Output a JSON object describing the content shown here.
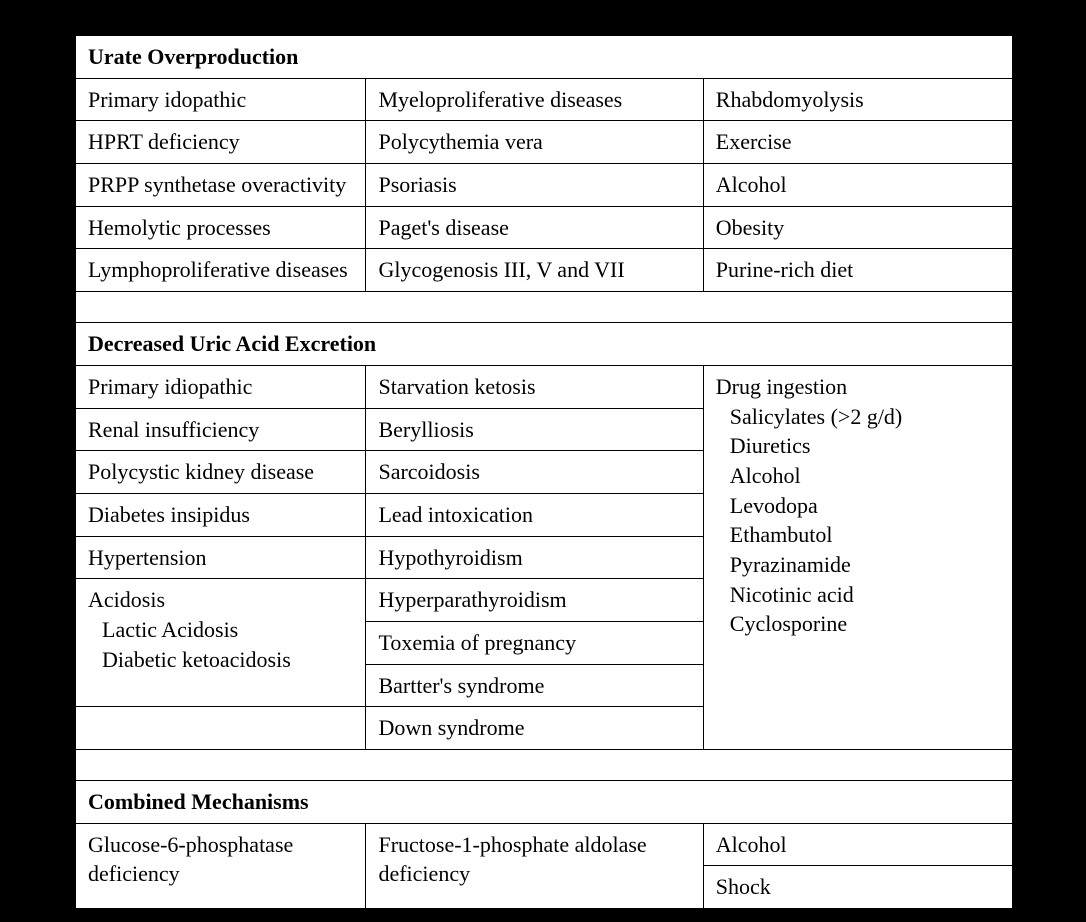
{
  "colors": {
    "page_background": "#000000",
    "paper_background": "#ffffff",
    "border": "#000000",
    "text": "#000000"
  },
  "typography": {
    "family": "Times New Roman",
    "cell_fontsize_pt": 22,
    "header_weight": "bold"
  },
  "layout": {
    "col_widths_pct": [
      31,
      36,
      33
    ]
  },
  "sections": {
    "overproduction": {
      "title": "Urate Overproduction",
      "rows": [
        [
          "Primary idopathic",
          "Myeloproliferative diseases",
          "Rhabdomyolysis"
        ],
        [
          "HPRT deficiency",
          "Polycythemia vera",
          "Exercise"
        ],
        [
          "PRPP synthetase overactivity",
          "Psoriasis",
          "Alcohol"
        ],
        [
          "Hemolytic processes",
          "Paget's disease",
          "Obesity"
        ],
        [
          "Lymphoproliferative diseases",
          "Glycogenosis III, V and VII",
          "Purine-rich diet"
        ]
      ]
    },
    "decreased": {
      "title": "Decreased Uric Acid Excretion",
      "col1": [
        "Primary idiopathic",
        "Renal insufficiency",
        "Polycystic kidney disease",
        "Diabetes insipidus",
        "Hypertension"
      ],
      "col1_acidosis": {
        "label": "Acidosis",
        "sub1": "Lactic Acidosis",
        "sub2": "Diabetic ketoacidosis"
      },
      "col2": [
        "Starvation ketosis",
        "Berylliosis",
        "Sarcoidosis",
        "Lead intoxication",
        "Hypothyroidism",
        "Hyperparathyroidism",
        "Toxemia of pregnancy",
        "Bartter's syndrome",
        "Down syndrome"
      ],
      "col3": {
        "label": "Drug ingestion",
        "items": [
          "Salicylates (>2 g/d)",
          "Diuretics",
          "Alcohol",
          "Levodopa",
          "Ethambutol",
          "Pyrazinamide",
          "Nicotinic acid",
          "Cyclosporine"
        ]
      }
    },
    "combined": {
      "title": "Combined Mechanisms",
      "col1": "Glucose-6-phosphatase deficiency",
      "col2": "Fructose-1-phosphate aldolase deficiency",
      "col3": [
        "Alcohol",
        "Shock"
      ]
    }
  }
}
